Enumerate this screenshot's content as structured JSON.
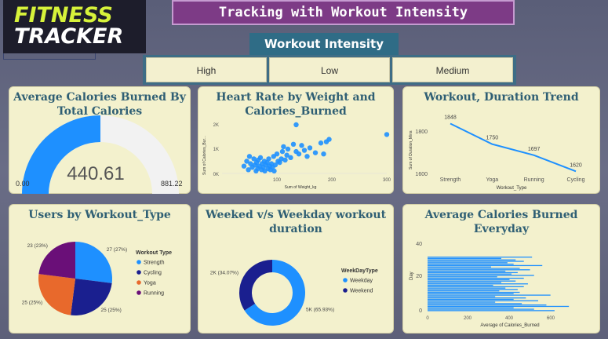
{
  "logo": {
    "line1": "FITNESS",
    "line2": "TRACKER"
  },
  "page_title": "Tracking with Workout Intensity",
  "slicer": {
    "title": "Workout Intensity",
    "options": [
      "High",
      "Low",
      "Medium"
    ]
  },
  "colors": {
    "accent": "#1e90ff",
    "navy": "#1a1f8f",
    "orange": "#e8692c",
    "purple": "#6a0f78",
    "title": "#2f5f74"
  },
  "cards": {
    "gauge": {
      "title": "Average Calories Burned By Total Calories",
      "value": "440.61",
      "min": "0.00",
      "max": "881.22"
    },
    "scatter": {
      "title": "Heart Rate by Weight and Calories_Burned",
      "xlabel": "Sum of Weight_kg",
      "ylabel": "Sum of Calories_Bur...",
      "yticks": [
        "2K",
        "1K",
        "0K"
      ],
      "xticks": [
        "0",
        "100",
        "200",
        "300"
      ]
    },
    "line": {
      "title": "Workout, Duration Trend",
      "xlabel": "Workout_Type",
      "ylabel": "Sum of Duration_Mins",
      "yticks": [
        "1800",
        "1600"
      ]
    },
    "pie": {
      "title": "Users by Workout_Type",
      "legend_title": "Workout Type"
    },
    "donut": {
      "title": "Weeked v/s Weekday workout duration",
      "legend_title": "WeekDayType"
    },
    "hbar": {
      "title": "Average Calories Burned Everyday",
      "xlabel": "Average of Calories_Burned",
      "ylabel": "Day",
      "yticks": [
        "40",
        "20",
        "0"
      ],
      "xticks": [
        "0",
        "200",
        "400",
        "600"
      ]
    }
  },
  "chart_data": [
    {
      "type": "gauge",
      "title": "Average Calories Burned By Total Calories",
      "value": 440.61,
      "min": 0.0,
      "max": 881.22
    },
    {
      "type": "scatter",
      "title": "Heart Rate by Weight and Calories_Burned",
      "xlabel": "Sum of Weight_kg",
      "ylabel": "Sum of Calories_Bur...",
      "xlim": [
        0,
        300
      ],
      "ylim": [
        0,
        2000
      ],
      "points": [
        [
          40,
          300
        ],
        [
          45,
          500
        ],
        [
          48,
          150
        ],
        [
          50,
          700
        ],
        [
          52,
          400
        ],
        [
          55,
          250
        ],
        [
          58,
          600
        ],
        [
          60,
          350
        ],
        [
          62,
          100
        ],
        [
          63,
          450
        ],
        [
          65,
          200
        ],
        [
          66,
          550
        ],
        [
          68,
          300
        ],
        [
          70,
          650
        ],
        [
          72,
          150
        ],
        [
          73,
          400
        ],
        [
          75,
          250
        ],
        [
          77,
          500
        ],
        [
          78,
          100
        ],
        [
          80,
          350
        ],
        [
          82,
          450
        ],
        [
          84,
          200
        ],
        [
          85,
          600
        ],
        [
          87,
          300
        ],
        [
          88,
          150
        ],
        [
          90,
          400
        ],
        [
          92,
          250
        ],
        [
          94,
          700
        ],
        [
          95,
          100
        ],
        [
          97,
          350
        ],
        [
          100,
          800
        ],
        [
          102,
          500
        ],
        [
          105,
          450
        ],
        [
          108,
          600
        ],
        [
          110,
          900
        ],
        [
          112,
          1100
        ],
        [
          115,
          550
        ],
        [
          118,
          750
        ],
        [
          120,
          1000
        ],
        [
          125,
          650
        ],
        [
          130,
          1200
        ],
        [
          135,
          900
        ],
        [
          140,
          800
        ],
        [
          145,
          1150
        ],
        [
          150,
          950
        ],
        [
          155,
          700
        ],
        [
          160,
          1050
        ],
        [
          170,
          850
        ],
        [
          180,
          1250
        ],
        [
          185,
          800
        ],
        [
          190,
          1300
        ],
        [
          195,
          1400
        ],
        [
          135,
          2000
        ],
        [
          300,
          1600
        ]
      ]
    },
    {
      "type": "line",
      "title": "Workout, Duration Trend",
      "xlabel": "Workout_Type",
      "ylabel": "Sum of Duration_Mins",
      "categories": [
        "Strength",
        "Yoga",
        "Running",
        "Cycling"
      ],
      "values": [
        1848,
        1750,
        1697,
        1620
      ],
      "ylim": [
        1580,
        1880
      ]
    },
    {
      "type": "pie",
      "title": "Users by Workout_Type",
      "legend_title": "Workout Type",
      "slices": [
        {
          "name": "Strength",
          "value": 27,
          "label": "27 (27%)",
          "color": "#1e90ff"
        },
        {
          "name": "Cycling",
          "value": 25,
          "label": "25 (25%)",
          "color": "#1a1f8f"
        },
        {
          "name": "Yoga",
          "value": 25,
          "label": "25 (25%)",
          "color": "#e8692c"
        },
        {
          "name": "Running",
          "value": 23,
          "label": "23 (23%)",
          "color": "#6a0f78"
        }
      ]
    },
    {
      "type": "pie",
      "title": "Weeked v/s Weekday workout duration",
      "legend_title": "WeekDayType",
      "slices": [
        {
          "name": "Weekday",
          "value": 65.93,
          "label": "5K (65.93%)",
          "color": "#1e90ff"
        },
        {
          "name": "Weekend",
          "value": 34.07,
          "label": "2K (34.07%)",
          "color": "#1a1f8f"
        }
      ]
    },
    {
      "type": "bar",
      "orientation": "horizontal",
      "title": "Average Calories Burned Everyday",
      "xlabel": "Average of Calories_Burned",
      "ylabel": "Day",
      "xlim": [
        0,
        720
      ],
      "ylim": [
        0,
        40
      ],
      "values": [
        510,
        360,
        430,
        470,
        390,
        420,
        560,
        310,
        450,
        500,
        380,
        440,
        410,
        520,
        340,
        470,
        400,
        430,
        360,
        490,
        320,
        470,
        380,
        440,
        350,
        450,
        420,
        600,
        330,
        480,
        420,
        540,
        330,
        460,
        580,
        690,
        420,
        520,
        620
      ]
    }
  ]
}
